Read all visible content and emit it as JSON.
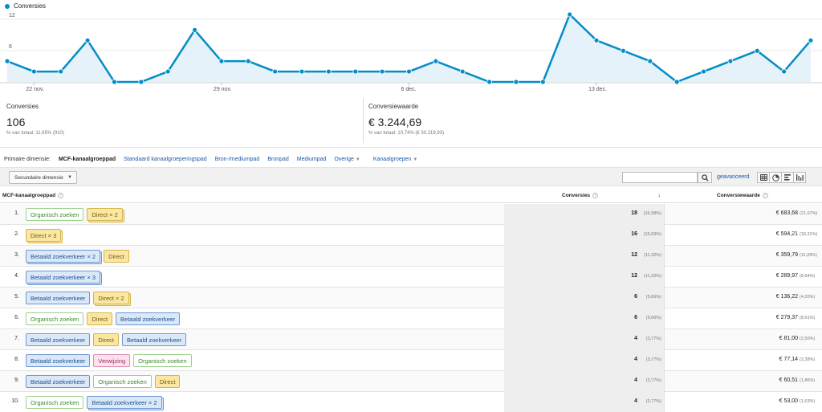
{
  "chart_data": {
    "type": "area",
    "series": [
      {
        "name": "Conversies",
        "values": [
          4,
          2,
          2,
          8,
          0,
          0,
          2,
          10,
          4,
          4,
          2,
          2,
          2,
          2,
          2,
          2,
          4,
          2,
          0,
          0,
          0,
          13,
          8,
          6,
          4,
          0,
          2,
          4,
          6,
          2,
          8
        ]
      }
    ],
    "x_tick_labels": [
      "22 nov.",
      "29 nov.",
      "6 dec.",
      "13 dec."
    ],
    "x_tick_indices": [
      1,
      8,
      15,
      22
    ],
    "y_tick_labels": [
      "6",
      "12"
    ],
    "ylim": [
      0,
      12
    ],
    "color": "#058dc7",
    "fill": "#e5f2f9"
  },
  "legend": {
    "label": "Conversies"
  },
  "summary": {
    "conv_label": "Conversies",
    "conv_value": "106",
    "conv_sub": "% van totaal: 11,65% (910)",
    "value_label": "Conversiewaarde",
    "value_value": "€ 3.244,69",
    "value_sub": "% van totaal: 10,74% (€ 30.219,93)"
  },
  "primary": {
    "label": "Primaire dimensie:",
    "selected": "MCF-kanaalgroeppad",
    "links": [
      "Standaard kanaalgroeperingspad",
      "Bron-/mediumpad",
      "Bronpad",
      "Mediumpad"
    ],
    "other": "Overige",
    "channels": "Kanaalgroepen"
  },
  "toolbar": {
    "secondary": "Secundaire dimensie",
    "search_placeholder": "",
    "advanced": "geavanceerd"
  },
  "table": {
    "col1": "MCF-kanaalgroeppad",
    "col2": "Conversies",
    "col3": "Conversiewaarde",
    "rows": [
      {
        "idx": "1.",
        "path": [
          {
            "t": "Organisch zoeken",
            "c": "green"
          },
          {
            "t": "Direct × 2",
            "c": "yellow",
            "m": true
          }
        ],
        "conv": "18",
        "convp": "(16,98%)",
        "val": "€ 683,68",
        "valp": "(21,07%)"
      },
      {
        "idx": "2.",
        "path": [
          {
            "t": "Direct × 3",
            "c": "yellow",
            "m": true
          }
        ],
        "conv": "16",
        "convp": "(15,09%)",
        "val": "€ 594,21",
        "valp": "(18,31%)"
      },
      {
        "idx": "3.",
        "path": [
          {
            "t": "Betaald zoekverkeer × 2",
            "c": "blue",
            "m": true
          },
          {
            "t": "Direct",
            "c": "yellow"
          }
        ],
        "conv": "12",
        "convp": "(11,32%)",
        "val": "€ 359,79",
        "valp": "(11,09%)"
      },
      {
        "idx": "4.",
        "path": [
          {
            "t": "Betaald zoekverkeer × 3",
            "c": "blue",
            "m": true
          }
        ],
        "conv": "12",
        "convp": "(11,32%)",
        "val": "€ 289,97",
        "valp": "(8,94%)"
      },
      {
        "idx": "5.",
        "path": [
          {
            "t": "Betaald zoekverkeer",
            "c": "blue"
          },
          {
            "t": "Direct × 2",
            "c": "yellow",
            "m": true
          }
        ],
        "conv": "6",
        "convp": "(5,66%)",
        "val": "€ 136,22",
        "valp": "(4,20%)"
      },
      {
        "idx": "6.",
        "path": [
          {
            "t": "Organisch zoeken",
            "c": "green"
          },
          {
            "t": "Direct",
            "c": "yellow"
          },
          {
            "t": "Betaald zoekverkeer",
            "c": "blue"
          }
        ],
        "conv": "6",
        "convp": "(5,66%)",
        "val": "€ 279,37",
        "valp": "(8,61%)"
      },
      {
        "idx": "7.",
        "path": [
          {
            "t": "Betaald zoekverkeer",
            "c": "blue"
          },
          {
            "t": "Direct",
            "c": "yellow"
          },
          {
            "t": "Betaald zoekverkeer",
            "c": "blue"
          }
        ],
        "conv": "4",
        "convp": "(3,77%)",
        "val": "€ 81,00",
        "valp": "(2,50%)"
      },
      {
        "idx": "8.",
        "path": [
          {
            "t": "Betaald zoekverkeer",
            "c": "blue"
          },
          {
            "t": "Verwijzing",
            "c": "pink"
          },
          {
            "t": "Organisch zoeken",
            "c": "green"
          }
        ],
        "conv": "4",
        "convp": "(3,77%)",
        "val": "€ 77,14",
        "valp": "(2,38%)"
      },
      {
        "idx": "9.",
        "path": [
          {
            "t": "Betaald zoekverkeer",
            "c": "blue"
          },
          {
            "t": "Organisch zoeken",
            "c": "green"
          },
          {
            "t": "Direct",
            "c": "yellow"
          }
        ],
        "conv": "4",
        "convp": "(3,77%)",
        "val": "€ 60,51",
        "valp": "(1,86%)"
      },
      {
        "idx": "10.",
        "path": [
          {
            "t": "Organisch zoeken",
            "c": "green"
          },
          {
            "t": "Betaald zoekverkeer × 2",
            "c": "blue",
            "m": true
          }
        ],
        "conv": "4",
        "convp": "(3,77%)",
        "val": "€ 53,00",
        "valp": "(1,63%)"
      }
    ]
  }
}
